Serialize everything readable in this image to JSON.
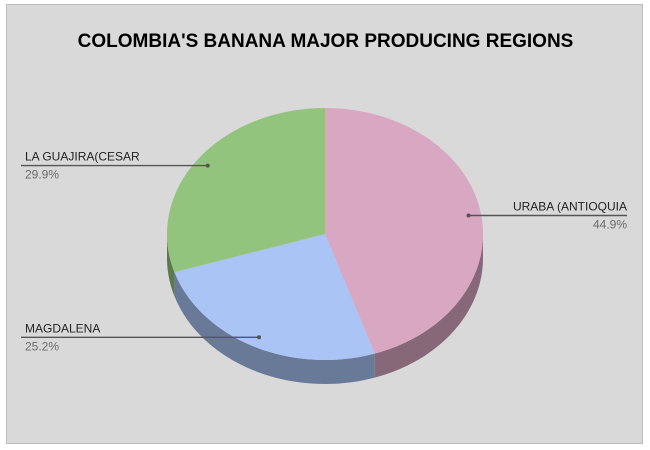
{
  "chart_data": {
    "type": "pie",
    "title": "COLOMBIA'S BANANA MAJOR PRODUCING REGIONS",
    "slices": [
      {
        "label": "URABA (ANTIOQUIA",
        "value": 44.9,
        "value_label": "44.9%",
        "color": "#d8a7c1"
      },
      {
        "label": "MAGDALENA",
        "value": 25.2,
        "value_label": "25.2%",
        "color": "#a9c4f5"
      },
      {
        "label": "LA GUAJIRA(CESAR",
        "value": 29.9,
        "value_label": "29.9%",
        "color": "#93c47d"
      }
    ],
    "legend": "none"
  }
}
